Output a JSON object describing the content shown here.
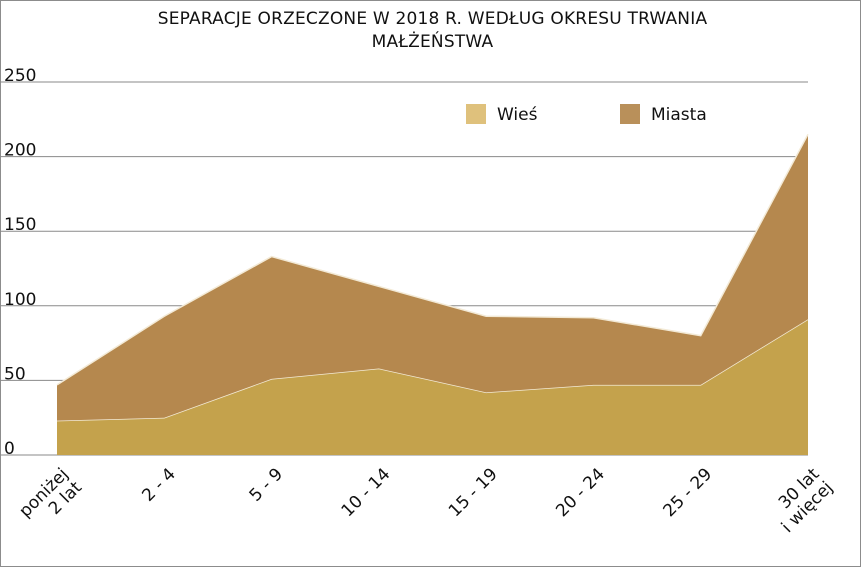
{
  "chart_data": {
    "type": "area",
    "stacked": true,
    "title_lines": [
      "SEPARACJE ORZECZONE W 2018 R. WEDŁUG OKRESU TRWANIA",
      "MAŁŻEŃSTWA"
    ],
    "categories": [
      [
        "poniżej",
        "2 lat"
      ],
      [
        "2 - 4"
      ],
      [
        "5 - 9"
      ],
      [
        "10 - 14"
      ],
      [
        "15 - 19"
      ],
      [
        "20 - 24"
      ],
      [
        "25 - 29"
      ],
      [
        "30 lat",
        "i więcej"
      ]
    ],
    "series": [
      {
        "name": "Wieś",
        "values": [
          23,
          25,
          51,
          58,
          42,
          47,
          47,
          91
        ],
        "color": "#c4a24c"
      },
      {
        "name": "Miasta",
        "values": [
          24,
          68,
          82,
          55,
          51,
          45,
          33,
          124
        ],
        "color": "#b5884e"
      }
    ],
    "legend_colors": {
      "Wieś": "#dfc17c",
      "Miasta": "#b9905a"
    },
    "ylim": [
      0,
      250
    ],
    "yticks": [
      0,
      50,
      100,
      150,
      200,
      250
    ],
    "grid": true,
    "legend_position": "top-right"
  }
}
